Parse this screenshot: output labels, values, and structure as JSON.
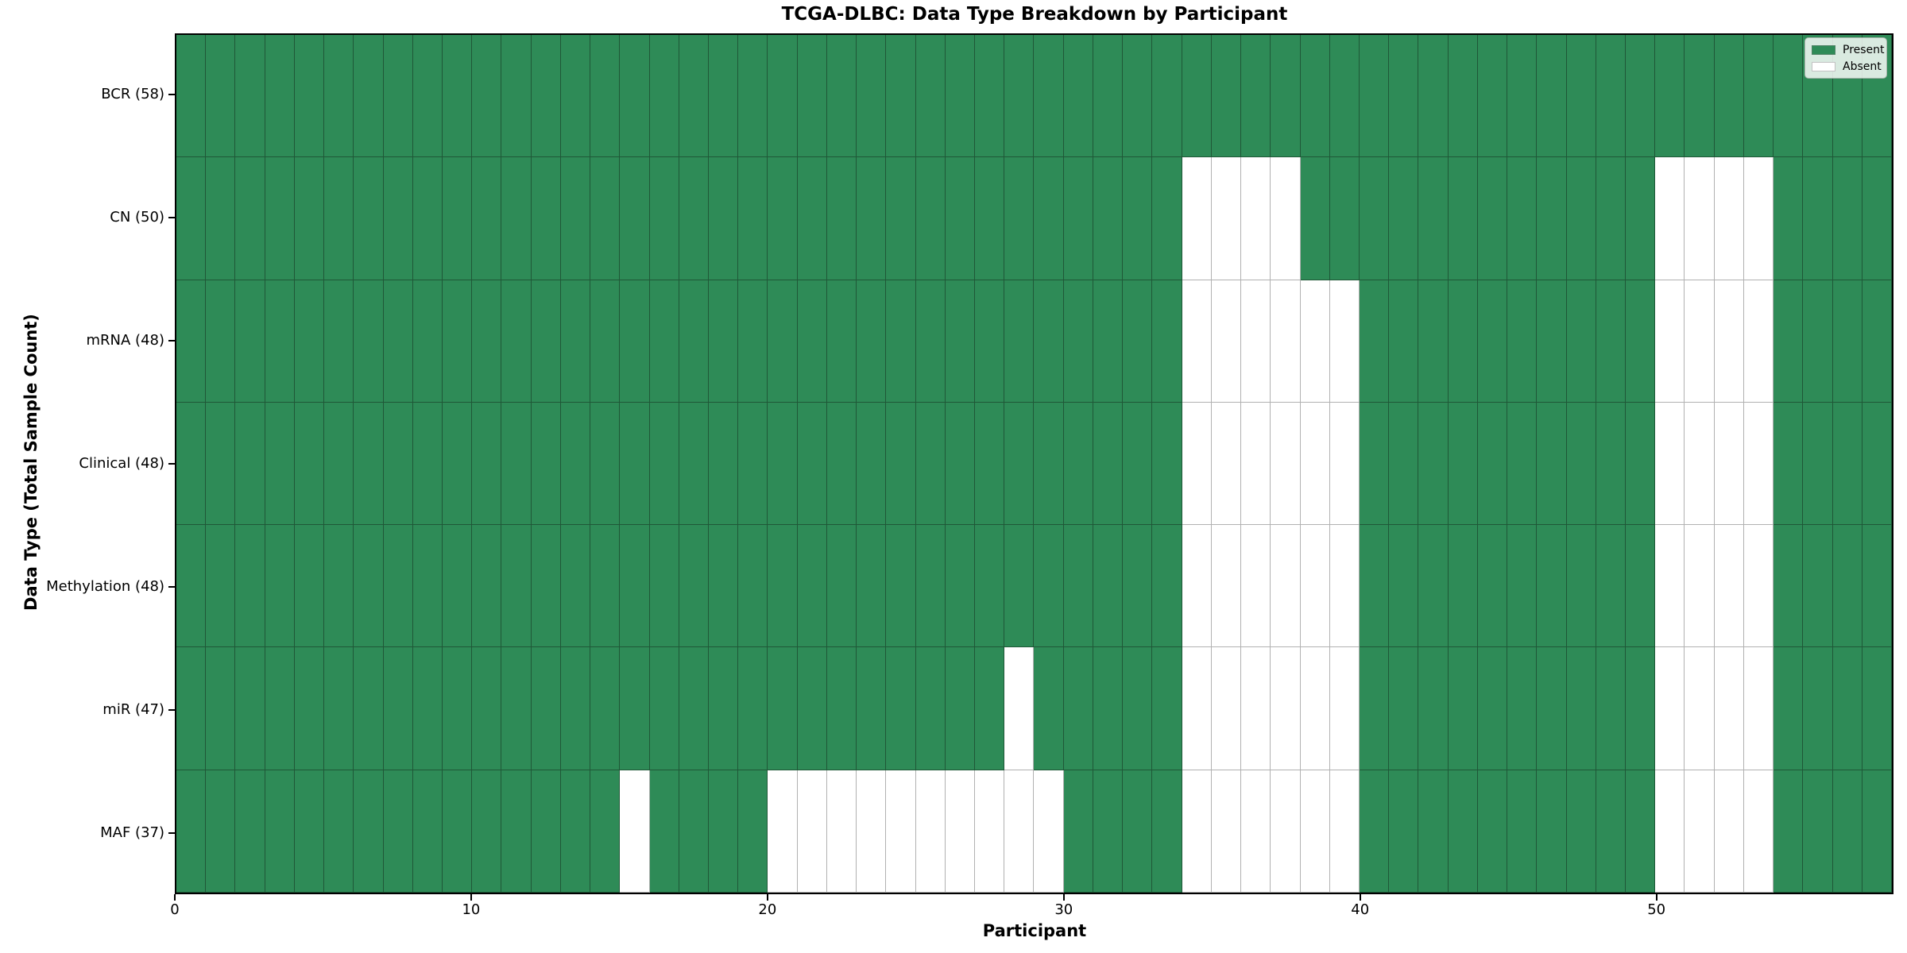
{
  "chart_data": {
    "type": "heatmap",
    "title": "TCGA-DLBC: Data Type Breakdown by Participant",
    "xlabel": "Participant",
    "ylabel": "Data Type (Total Sample Count)",
    "n_participants": 58,
    "x_range": [
      0,
      58
    ],
    "x_ticks": [
      0,
      10,
      20,
      30,
      40,
      50
    ],
    "legend_position": "upper right",
    "legend_entries": [
      {
        "label": "Present",
        "color": "#2E8B57"
      },
      {
        "label": "Absent",
        "color": "#FFFFFF"
      }
    ],
    "colors": {
      "present": "#2E8B57",
      "absent": "#FFFFFF",
      "grid_on_present": "rgba(20,45,30,0.55)",
      "grid_on_absent": "rgba(125,125,125,0.6)",
      "spine": "#000000"
    },
    "rows": [
      {
        "label": "BCR (58)",
        "data_type": "BCR",
        "present_count": 58,
        "absent_participants": []
      },
      {
        "label": "CN (50)",
        "data_type": "CN",
        "present_count": 50,
        "absent_participants": [
          34,
          35,
          36,
          37,
          50,
          51,
          52,
          53
        ]
      },
      {
        "label": "mRNA (48)",
        "data_type": "mRNA",
        "present_count": 48,
        "absent_participants": [
          34,
          35,
          36,
          37,
          38,
          39,
          50,
          51,
          52,
          53
        ]
      },
      {
        "label": "Clinical (48)",
        "data_type": "Clinical",
        "present_count": 48,
        "absent_participants": [
          34,
          35,
          36,
          37,
          38,
          39,
          50,
          51,
          52,
          53
        ]
      },
      {
        "label": "Methylation (48)",
        "data_type": "Methylation",
        "present_count": 48,
        "absent_participants": [
          34,
          35,
          36,
          37,
          38,
          39,
          50,
          51,
          52,
          53
        ]
      },
      {
        "label": "miR (47)",
        "data_type": "miR",
        "present_count": 47,
        "absent_participants": [
          28,
          34,
          35,
          36,
          37,
          38,
          39,
          50,
          51,
          52,
          53
        ]
      },
      {
        "label": "MAF (37)",
        "data_type": "MAF",
        "present_count": 37,
        "absent_participants": [
          15,
          20,
          21,
          22,
          23,
          24,
          25,
          26,
          27,
          28,
          29,
          34,
          35,
          36,
          37,
          38,
          39,
          50,
          51,
          52,
          53
        ]
      }
    ]
  }
}
